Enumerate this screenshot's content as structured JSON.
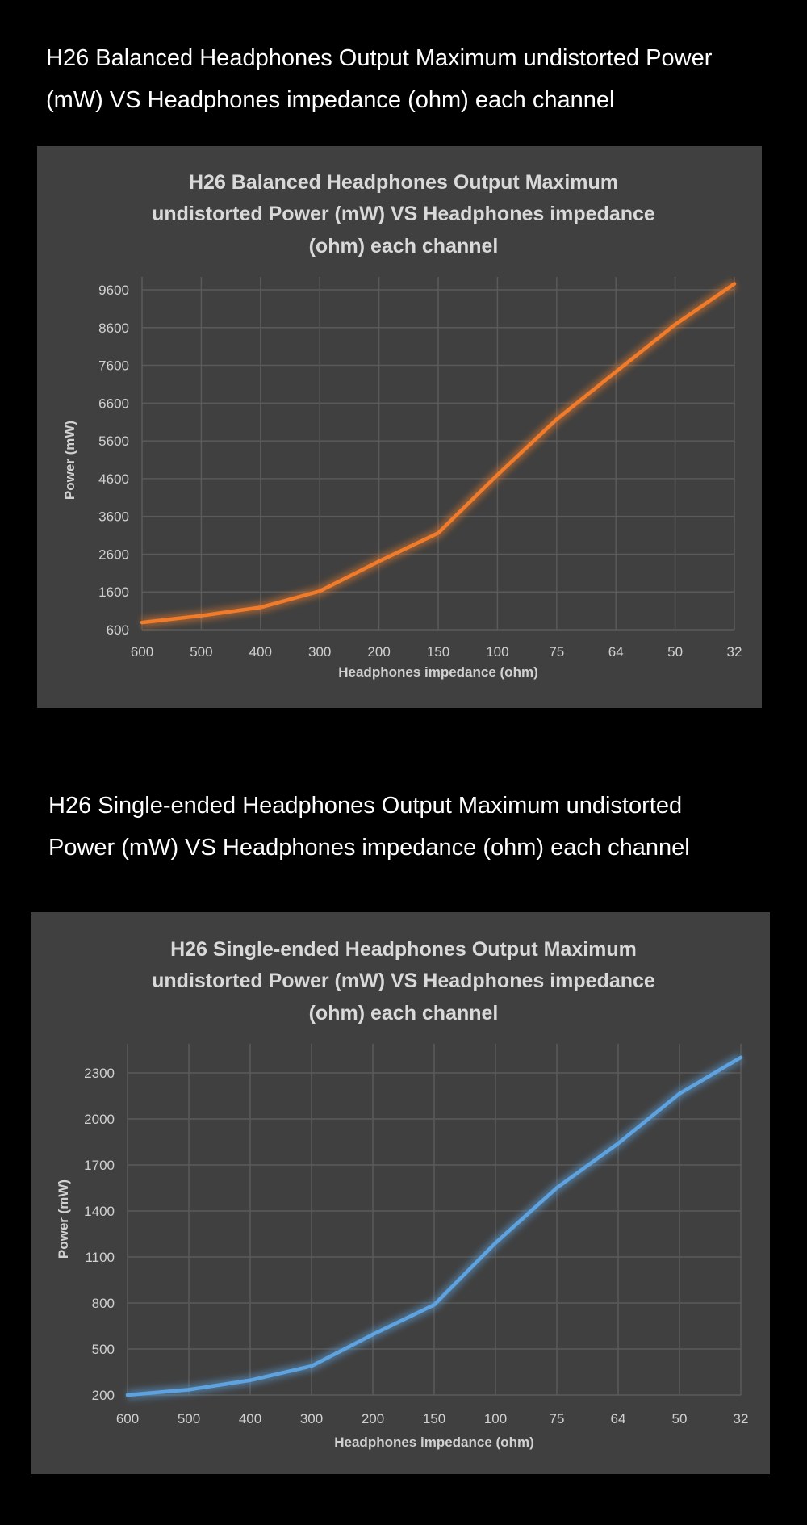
{
  "headings": [
    {
      "line1": "H26 Balanced Headphones Output Maximum undistorted Power",
      "line2": " (mW) VS Headphones impedance (ohm) each channel"
    },
    {
      "line1": "H26 Single-ended Headphones Output Maximum undistorted",
      "line2": "Power (mW) VS Headphones impedance (ohm) each channel"
    }
  ],
  "chart_data": [
    {
      "type": "line",
      "title": [
        "H26 Balanced Headphones Output Maximum",
        "undistorted Power (mW) VS Headphones impedance",
        "(ohm) each channel"
      ],
      "xlabel": "Headphones impedance (ohm)",
      "ylabel": "Power (mW)",
      "categories": [
        "600",
        "500",
        "400",
        "300",
        "200",
        "150",
        "100",
        "75",
        "64",
        "50",
        "32"
      ],
      "yticks": [
        600,
        1600,
        2600,
        3600,
        4600,
        5600,
        6600,
        7600,
        8600,
        9600
      ],
      "ylim": [
        600,
        9600
      ],
      "grid": true,
      "color": "#f07b2a",
      "series": [
        {
          "name": "Balanced",
          "values": [
            790,
            970,
            1190,
            1620,
            2410,
            3160,
            4700,
            6170,
            7430,
            8680,
            9760
          ]
        }
      ]
    },
    {
      "type": "line",
      "title": [
        "H26 Single-ended Headphones Output Maximum",
        "undistorted Power (mW) VS Headphones impedance",
        "(ohm) each channel"
      ],
      "xlabel": "Headphones impedance (ohm)",
      "ylabel": "Power (mW)",
      "categories": [
        "600",
        "500",
        "400",
        "300",
        "200",
        "150",
        "100",
        "75",
        "64",
        "50",
        "32"
      ],
      "yticks": [
        200,
        500,
        800,
        1100,
        1400,
        1700,
        2000,
        2300
      ],
      "ylim": [
        200,
        2300
      ],
      "grid": true,
      "color": "#5ea3e0",
      "series": [
        {
          "name": "Single-ended",
          "values": [
            200,
            235,
            296,
            389,
            595,
            788,
            1191,
            1551,
            1840,
            2165,
            2401
          ]
        }
      ]
    }
  ]
}
